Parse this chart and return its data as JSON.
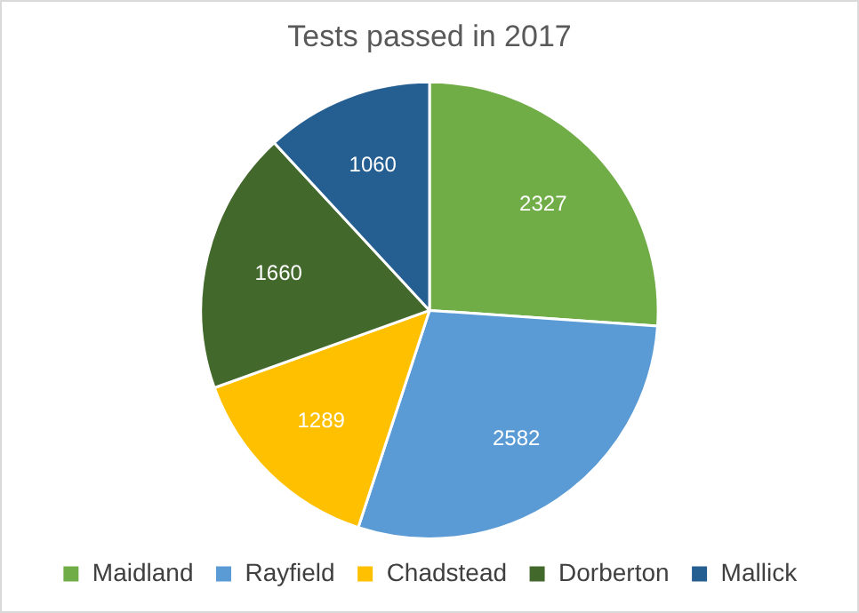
{
  "chart_data": {
    "type": "pie",
    "title": "Tests passed in 2017",
    "categories": [
      "Maidland",
      "Rayfield",
      "Chadstead",
      "Dorberton",
      "Mallick"
    ],
    "values": [
      2327,
      2582,
      1289,
      1660,
      1060
    ],
    "colors": [
      "#70ad47",
      "#5b9bd5",
      "#ffc000",
      "#43682b",
      "#255e91"
    ],
    "legend": "bottom",
    "data_labels": true
  }
}
